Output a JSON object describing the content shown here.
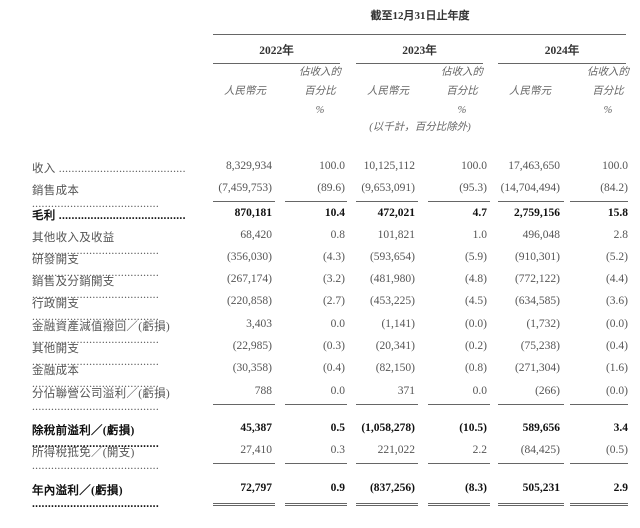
{
  "header": {
    "period": "截至12月31日止年度",
    "years": [
      "2022年",
      "2023年",
      "2024年"
    ],
    "col_rmb": "人民幣元",
    "col_pct_lines": [
      "佔收入的",
      "百分比",
      "%"
    ],
    "note": "(以千計，百分比除外)"
  },
  "rows": [
    {
      "label": "收入",
      "v": [
        "8,329,934",
        "100.0",
        "10,125,112",
        "100.0",
        "17,463,650",
        "100.0"
      ]
    },
    {
      "label": "銷售成本",
      "v": [
        "(7,459,753)",
        "(89.6)",
        "(9,653,091)",
        "(95.3)",
        "(14,704,494)",
        "(84.2)"
      ]
    },
    {
      "label": "毛利",
      "v": [
        "870,181",
        "10.4",
        "472,021",
        "4.7",
        "2,759,156",
        "15.8"
      ]
    },
    {
      "label": "其他收入及收益",
      "v": [
        "68,420",
        "0.8",
        "101,821",
        "1.0",
        "496,048",
        "2.8"
      ]
    },
    {
      "label": "研發開支",
      "v": [
        "(356,030)",
        "(4.3)",
        "(593,654)",
        "(5.9)",
        "(910,301)",
        "(5.2)"
      ]
    },
    {
      "label": "銷售及分銷開支",
      "v": [
        "(267,174)",
        "(3.2)",
        "(481,980)",
        "(4.8)",
        "(772,122)",
        "(4.4)"
      ]
    },
    {
      "label": "行政開支",
      "v": [
        "(220,858)",
        "(2.7)",
        "(453,225)",
        "(4.5)",
        "(634,585)",
        "(3.6)"
      ]
    },
    {
      "label": "金融資產減值撥回／(虧損)",
      "v": [
        "3,403",
        "0.0",
        "(1,141)",
        "(0.0)",
        "(1,732)",
        "(0.0)"
      ]
    },
    {
      "label": "其他開支",
      "v": [
        "(22,985)",
        "(0.3)",
        "(20,341)",
        "(0.2)",
        "(75,238)",
        "(0.4)"
      ]
    },
    {
      "label": "金融成本",
      "v": [
        "(30,358)",
        "(0.4)",
        "(82,150)",
        "(0.8)",
        "(271,304)",
        "(1.6)"
      ]
    },
    {
      "label": "分佔聯營公司溢利／(虧損)",
      "v": [
        "788",
        "0.0",
        "371",
        "0.0",
        "(266)",
        "(0.0)"
      ]
    },
    {
      "label": "除稅前溢利／(虧損)",
      "v": [
        "45,387",
        "0.5",
        "(1,058,278)",
        "(10.5)",
        "589,656",
        "3.4"
      ]
    },
    {
      "label": "所得稅抵免／(開支)",
      "v": [
        "27,410",
        "0.3",
        "221,022",
        "2.2",
        "(84,425)",
        "(0.5)"
      ]
    },
    {
      "label": "年內溢利／(虧損)",
      "v": [
        "72,797",
        "0.9",
        "(837,256)",
        "(8.3)",
        "505,231",
        "2.9"
      ]
    }
  ]
}
